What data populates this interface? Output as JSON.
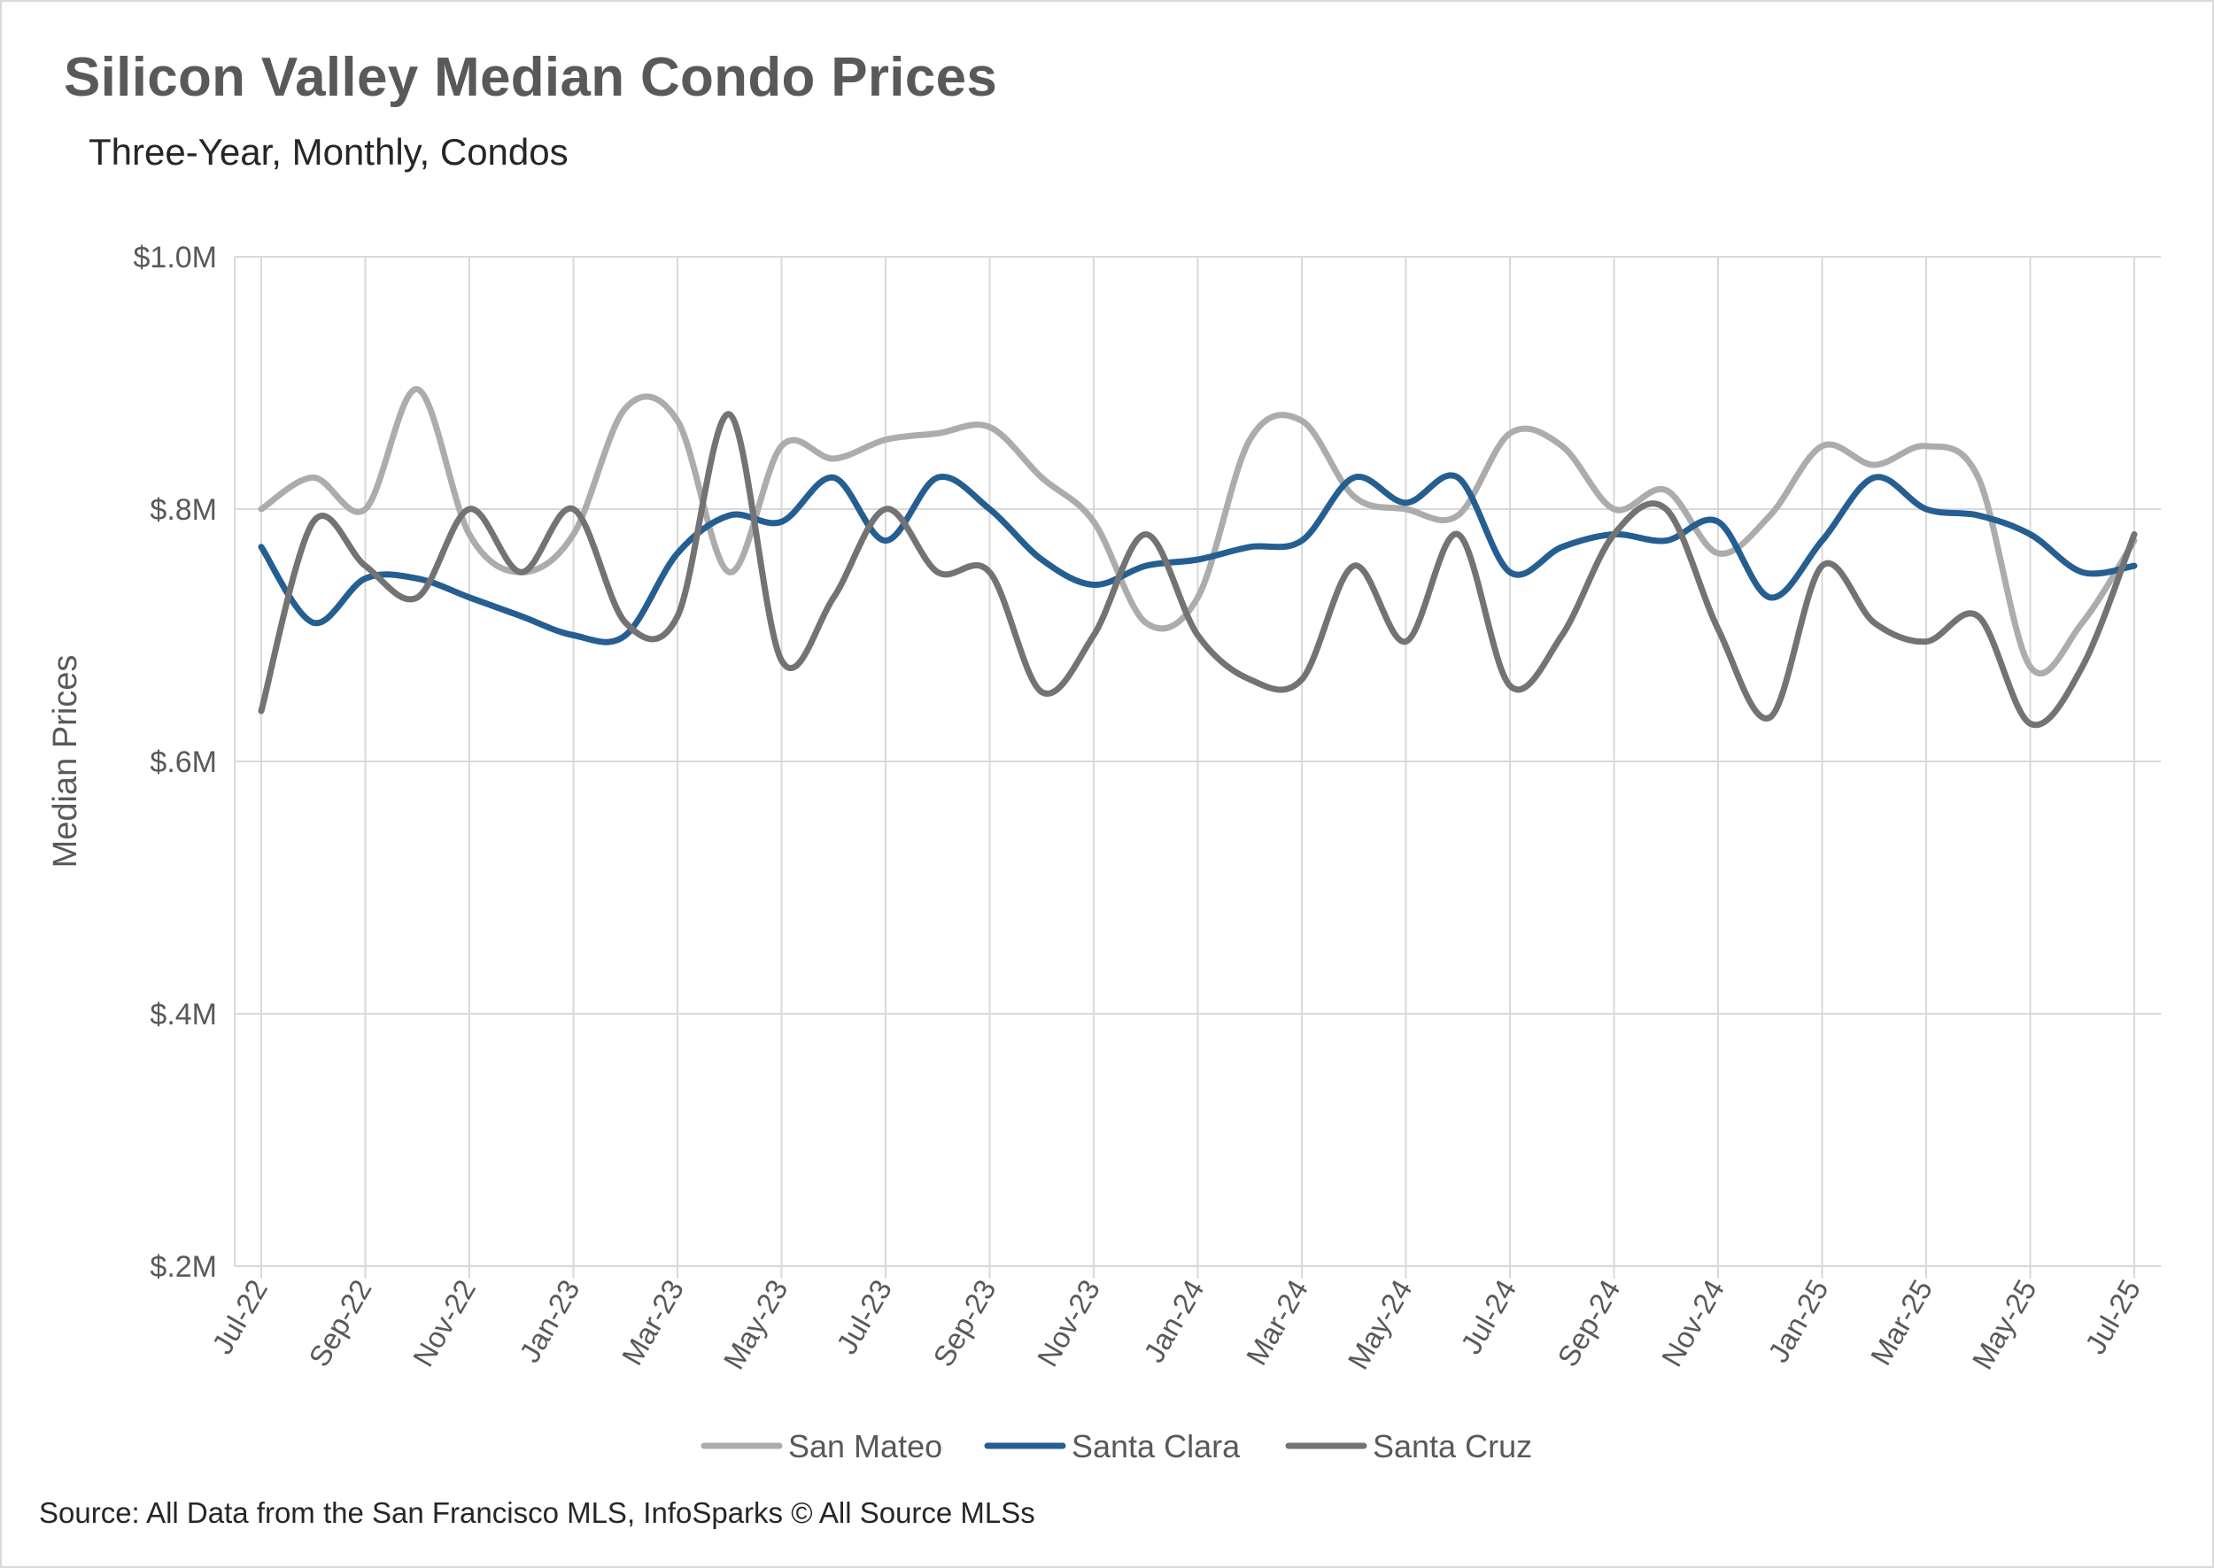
{
  "title": "Silicon Valley Median Condo Prices",
  "subtitle": "Three-Year, Monthly, Condos",
  "source": "Source: All Data from the San Francisco MLS, InfoSparks © All Source MLSs",
  "chart_data": {
    "type": "line",
    "title": "Silicon Valley Median Condo Prices",
    "subtitle": "Three-Year, Monthly, Condos",
    "xlabel": "",
    "ylabel": "Median Prices",
    "ylim": [
      0.2,
      1.0
    ],
    "y_unit": "millions USD",
    "y_ticks": [
      {
        "value": 0.2,
        "label": "$.2M"
      },
      {
        "value": 0.4,
        "label": "$.4M"
      },
      {
        "value": 0.6,
        "label": "$.6M"
      },
      {
        "value": 0.8,
        "label": "$.8M"
      },
      {
        "value": 1.0,
        "label": "$1.0M"
      }
    ],
    "grid": true,
    "legend": "bottom",
    "x": [
      "Jul-22",
      "Aug-22",
      "Sep-22",
      "Oct-22",
      "Nov-22",
      "Dec-22",
      "Jan-23",
      "Feb-23",
      "Mar-23",
      "Apr-23",
      "May-23",
      "Jun-23",
      "Jul-23",
      "Aug-23",
      "Sep-23",
      "Oct-23",
      "Nov-23",
      "Dec-23",
      "Jan-24",
      "Feb-24",
      "Mar-24",
      "Apr-24",
      "May-24",
      "Jun-24",
      "Jul-24",
      "Aug-24",
      "Sep-24",
      "Oct-24",
      "Nov-24",
      "Dec-24",
      "Jan-25",
      "Feb-25",
      "Mar-25",
      "Apr-25",
      "May-25",
      "Jun-25",
      "Jul-25"
    ],
    "x_tick_labels": [
      "Jul-22",
      "Sep-22",
      "Nov-22",
      "Jan-23",
      "Mar-23",
      "May-23",
      "Jul-23",
      "Sep-23",
      "Nov-23",
      "Jan-24",
      "Mar-24",
      "May-24",
      "Jul-24",
      "Sep-24",
      "Nov-24",
      "Jan-25",
      "Mar-25",
      "May-25",
      "Jul-25"
    ],
    "series": [
      {
        "name": "San Mateo",
        "color": "#acacac",
        "values": [
          0.8,
          0.825,
          0.8,
          0.895,
          0.78,
          0.75,
          0.78,
          0.88,
          0.87,
          0.75,
          0.85,
          0.84,
          0.855,
          0.86,
          0.865,
          0.825,
          0.79,
          0.71,
          0.73,
          0.855,
          0.87,
          0.81,
          0.8,
          0.795,
          0.86,
          0.85,
          0.8,
          0.815,
          0.765,
          0.795,
          0.85,
          0.835,
          0.85,
          0.825,
          0.675,
          0.71,
          0.775
        ]
      },
      {
        "name": "Santa Clara",
        "color": "#255e91",
        "values": [
          0.77,
          0.71,
          0.745,
          0.745,
          0.73,
          0.715,
          0.7,
          0.7,
          0.765,
          0.795,
          0.79,
          0.825,
          0.775,
          0.825,
          0.8,
          0.76,
          0.74,
          0.755,
          0.76,
          0.77,
          0.775,
          0.825,
          0.805,
          0.825,
          0.75,
          0.77,
          0.78,
          0.775,
          0.79,
          0.73,
          0.775,
          0.825,
          0.8,
          0.795,
          0.78,
          0.75,
          0.755
        ]
      },
      {
        "name": "Santa Cruz",
        "color": "#737373",
        "values": [
          0.64,
          0.79,
          0.755,
          0.73,
          0.8,
          0.75,
          0.8,
          0.71,
          0.715,
          0.875,
          0.68,
          0.73,
          0.8,
          0.75,
          0.75,
          0.655,
          0.7,
          0.78,
          0.7,
          0.665,
          0.665,
          0.755,
          0.695,
          0.78,
          0.66,
          0.7,
          0.78,
          0.8,
          0.705,
          0.635,
          0.755,
          0.71,
          0.695,
          0.715,
          0.63,
          0.675,
          0.78
        ]
      }
    ]
  }
}
